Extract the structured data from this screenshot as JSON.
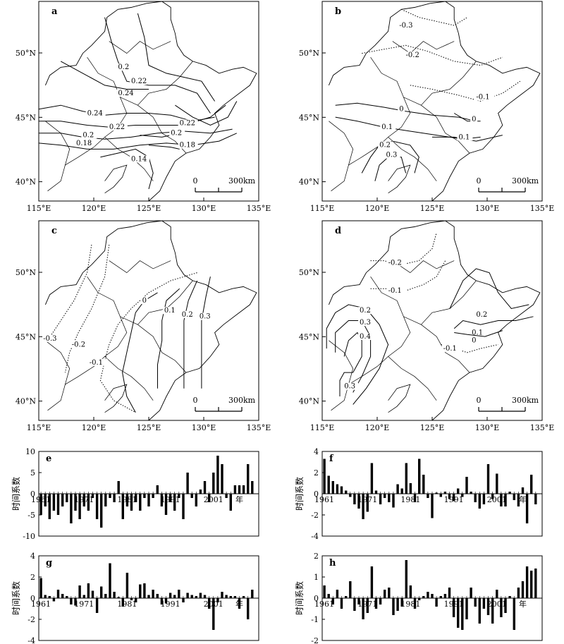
{
  "maps": [
    {
      "panel": "a",
      "isolines": [
        {
          "label": "0.2",
          "style": "solid"
        },
        {
          "label": "0.22",
          "style": "solid"
        },
        {
          "label": "0.24",
          "style": "solid"
        },
        {
          "label": "0.24",
          "style": "solid"
        },
        {
          "label": "0.22",
          "style": "solid"
        },
        {
          "label": "0.22",
          "style": "solid"
        },
        {
          "label": "0.2",
          "style": "solid"
        },
        {
          "label": "0.2",
          "style": "solid"
        },
        {
          "label": "0.18",
          "style": "solid"
        },
        {
          "label": "0.18",
          "style": "solid"
        },
        {
          "label": "0.14",
          "style": "solid"
        }
      ]
    },
    {
      "panel": "b",
      "isolines": [
        {
          "label": "-0.3",
          "style": "dotted"
        },
        {
          "label": "-0.2",
          "style": "dotted"
        },
        {
          "label": "-0.1",
          "style": "dotted"
        },
        {
          "label": "0",
          "style": "solid"
        },
        {
          "label": "0",
          "style": "solid"
        },
        {
          "label": "0.1",
          "style": "solid"
        },
        {
          "label": "0.1",
          "style": "solid"
        },
        {
          "label": "0.2",
          "style": "solid"
        },
        {
          "label": "0.3",
          "style": "solid"
        }
      ]
    },
    {
      "panel": "c",
      "isolines": [
        {
          "label": "-0.3",
          "style": "dotted"
        },
        {
          "label": "-0.2",
          "style": "dotted"
        },
        {
          "label": "-0.1",
          "style": "dotted"
        },
        {
          "label": "0",
          "style": "solid"
        },
        {
          "label": "0.1",
          "style": "solid"
        },
        {
          "label": "0.2",
          "style": "solid"
        },
        {
          "label": "0.3",
          "style": "solid"
        }
      ]
    },
    {
      "panel": "d",
      "isolines": [
        {
          "label": "-0.2",
          "style": "dotted"
        },
        {
          "label": "-0.1",
          "style": "dotted"
        },
        {
          "label": "-0.1",
          "style": "dotted"
        },
        {
          "label": "0.2",
          "style": "solid"
        },
        {
          "label": "0.3",
          "style": "solid"
        },
        {
          "label": "0.4",
          "style": "solid"
        },
        {
          "label": "0.3",
          "style": "solid"
        },
        {
          "label": "0.2",
          "style": "solid"
        },
        {
          "label": "0.1",
          "style": "solid"
        },
        {
          "label": "0",
          "style": "solid"
        }
      ]
    }
  ],
  "map_axes": {
    "lon_ticks": [
      "115°E",
      "120°E",
      "125°E",
      "130°E",
      "135°E"
    ],
    "lat_ticks": [
      "40°N",
      "45°N",
      "50°N"
    ],
    "lon_range": [
      115,
      135
    ],
    "lat_range": [
      38.5,
      54
    ],
    "scale_bar": {
      "start": "0",
      "end": "300km"
    }
  },
  "chart_data": [
    {
      "type": "bar",
      "panel": "e",
      "ylabel": "时间系数",
      "xlabel": "年",
      "x": [
        1961,
        1962,
        1963,
        1964,
        1965,
        1966,
        1967,
        1968,
        1969,
        1970,
        1971,
        1972,
        1973,
        1974,
        1975,
        1976,
        1977,
        1978,
        1979,
        1980,
        1981,
        1982,
        1983,
        1984,
        1985,
        1986,
        1987,
        1988,
        1989,
        1990,
        1991,
        1992,
        1993,
        1994,
        1995,
        1996,
        1997,
        1998,
        1999,
        2000,
        2001,
        2002,
        2003,
        2004,
        2005,
        2006,
        2007,
        2008,
        2009,
        2010
      ],
      "values": [
        -5,
        -3,
        -6,
        -4,
        -5,
        -3,
        -2,
        -7,
        -4,
        -6,
        -3,
        -4,
        -1,
        -6,
        -8,
        -3,
        -1,
        -2,
        3,
        -6,
        -3,
        -4,
        -2,
        -4,
        -1,
        -3,
        -1,
        2,
        -3,
        -5,
        -2,
        -4,
        -1,
        -6,
        5,
        -1,
        -3,
        1,
        3,
        -2,
        5,
        9,
        7,
        -1,
        -4,
        2,
        2,
        2,
        7,
        3
      ],
      "ylim": [
        -10,
        10
      ],
      "yticks": [
        "10",
        "5",
        "0",
        "-5",
        "-10"
      ],
      "xticks": [
        "1961",
        "1971",
        "1981",
        "1991",
        "2001"
      ]
    },
    {
      "type": "bar",
      "panel": "f",
      "ylabel": "时间系数",
      "xlabel": "年",
      "x": [
        1961,
        1962,
        1963,
        1964,
        1965,
        1966,
        1967,
        1968,
        1969,
        1970,
        1971,
        1972,
        1973,
        1974,
        1975,
        1976,
        1977,
        1978,
        1979,
        1980,
        1981,
        1982,
        1983,
        1984,
        1985,
        1986,
        1987,
        1988,
        1989,
        1990,
        1991,
        1992,
        1993,
        1994,
        1995,
        1996,
        1997,
        1998,
        1999,
        2000,
        2001,
        2002,
        2003,
        2004,
        2005,
        2006,
        2007,
        2008,
        2009,
        2010
      ],
      "values": [
        3.3,
        1.7,
        1.2,
        0.9,
        0.7,
        0.3,
        -0.3,
        -1.0,
        -1.4,
        -2.4,
        -1.7,
        2.9,
        0.3,
        -1.0,
        -0.4,
        -0.8,
        -1.3,
        0.9,
        0.5,
        2.9,
        1.0,
        -0.8,
        3.3,
        1.8,
        -0.4,
        -2.3,
        0.1,
        -0.3,
        0.2,
        -0.5,
        -0.7,
        0.5,
        -0.3,
        1.6,
        0.2,
        -0.8,
        -1.4,
        -1.0,
        2.8,
        -0.5,
        1.9,
        -1.2,
        -1.2,
        0.2,
        -0.6,
        -1.2,
        0.6,
        -2.8,
        1.8,
        -1.0
      ],
      "ylim": [
        -4,
        4
      ],
      "yticks": [
        "4",
        "2",
        "0",
        "-2",
        "-4"
      ],
      "xticks": [
        "1961",
        "1971",
        "1981",
        "1991",
        "2001"
      ]
    },
    {
      "type": "bar",
      "panel": "g",
      "ylabel": "时间系数",
      "xlabel": "年",
      "x": [
        1961,
        1962,
        1963,
        1964,
        1965,
        1966,
        1967,
        1968,
        1969,
        1970,
        1971,
        1972,
        1973,
        1974,
        1975,
        1976,
        1977,
        1978,
        1979,
        1980,
        1981,
        1982,
        1983,
        1984,
        1985,
        1986,
        1987,
        1988,
        1989,
        1990,
        1991,
        1992,
        1993,
        1994,
        1995,
        1996,
        1997,
        1998,
        1999,
        2000,
        2001,
        2002,
        2003,
        2004,
        2005,
        2006,
        2007,
        2008,
        2009,
        2010
      ],
      "values": [
        1.9,
        0.3,
        0.2,
        -0.3,
        0.8,
        0.4,
        0.2,
        -0.6,
        -0.7,
        1.2,
        0.3,
        1.4,
        0.7,
        -1.4,
        1.1,
        0.4,
        3.3,
        0.6,
        0.1,
        -0.8,
        2.4,
        -0.2,
        -0.4,
        1.3,
        1.4,
        0.3,
        0.8,
        0.4,
        -0.6,
        -0.5,
        0.5,
        0.3,
        0.8,
        -0.4,
        0.5,
        0.3,
        0.2,
        0.5,
        0.3,
        -1.0,
        -3.0,
        -0.4,
        0.6,
        0.3,
        0.2,
        0.2,
        -1.0,
        0.2,
        -2.0,
        0.8
      ],
      "ylim": [
        -4,
        4
      ],
      "yticks": [
        "4",
        "2",
        "0",
        "-2",
        "-4"
      ],
      "xticks": [
        "1961",
        "1971",
        "1981",
        "1991",
        "2001"
      ]
    },
    {
      "type": "bar",
      "panel": "h",
      "ylabel": "时间系数",
      "xlabel": "年",
      "x": [
        1961,
        1962,
        1963,
        1964,
        1965,
        1966,
        1967,
        1968,
        1969,
        1970,
        1971,
        1972,
        1973,
        1974,
        1975,
        1976,
        1977,
        1978,
        1979,
        1980,
        1981,
        1982,
        1983,
        1984,
        1985,
        1986,
        1987,
        1988,
        1989,
        1990,
        1991,
        1992,
        1993,
        1994,
        1995,
        1996,
        1997,
        1998,
        1999,
        2000,
        2001,
        2002,
        2003,
        2004,
        2005,
        2006,
        2007,
        2008,
        2009,
        2010
      ],
      "values": [
        0.6,
        0.2,
        -0.3,
        0.4,
        -0.5,
        0.1,
        0.8,
        -0.6,
        -0.3,
        -1.0,
        -0.7,
        1.5,
        -0.5,
        -0.3,
        0.4,
        0.5,
        -0.8,
        -0.6,
        -0.4,
        1.8,
        0.6,
        -0.5,
        -0.1,
        0.1,
        0.3,
        0.2,
        -0.4,
        0.1,
        0.2,
        0.5,
        -0.9,
        -1.4,
        -1.5,
        -1.0,
        0.5,
        -0.4,
        -1.2,
        -0.5,
        -0.8,
        -1.2,
        0.4,
        -0.9,
        -0.7,
        0.1,
        -1.5,
        0.5,
        0.8,
        1.5,
        1.3,
        1.4
      ],
      "ylim": [
        -2,
        2
      ],
      "yticks": [
        "2",
        "1",
        "0",
        "-1",
        "-2"
      ],
      "xticks": [
        "1961",
        "1971",
        "1981",
        "1991",
        "2001"
      ]
    }
  ]
}
